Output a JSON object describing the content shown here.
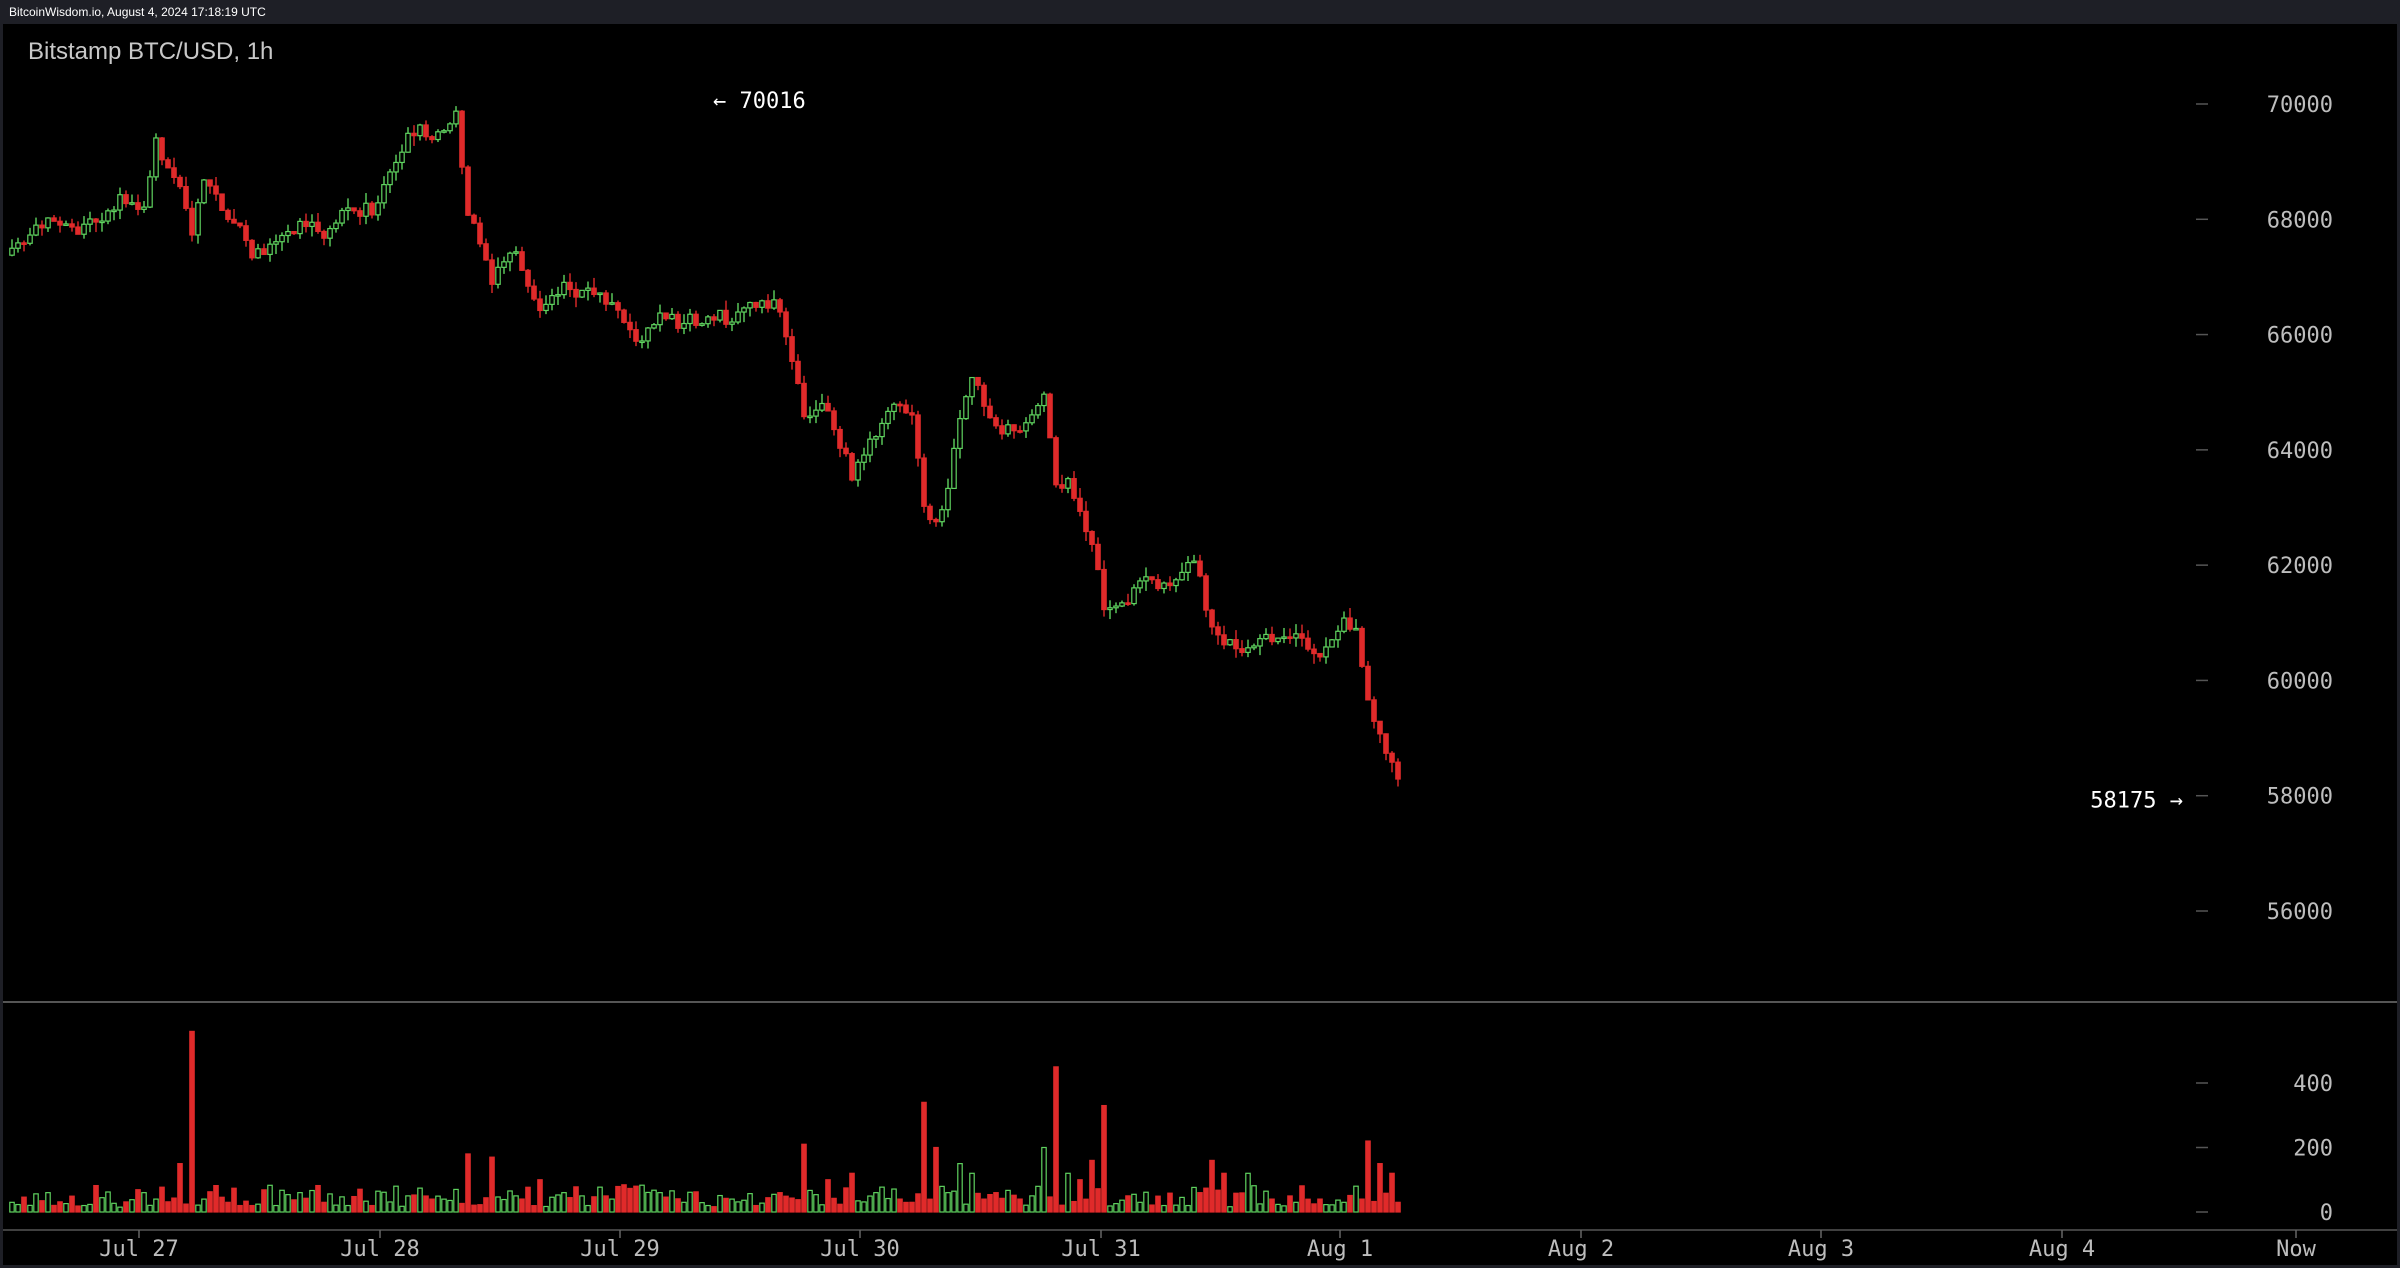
{
  "topbar": {
    "caption": "BitcoinWisdom.io, August 4, 2024 17:18:19 UTC"
  },
  "colors": {
    "up": "#5fd35f",
    "down": "#e02a2a",
    "background": "#000000",
    "axis_text": "#bdbdbd"
  },
  "chart_data": {
    "type": "candlestick",
    "title": "Bitstamp BTC/USD, 1h",
    "price_axis": {
      "ticks": [
        "56000",
        "58000",
        "60000",
        "62000",
        "64000",
        "66000",
        "68000",
        "70000"
      ],
      "range": [
        54500,
        71000
      ]
    },
    "volume_axis": {
      "ticks": [
        "0",
        "200",
        "400"
      ],
      "range": [
        0,
        600
      ]
    },
    "x_ticks": [
      "Jul 27",
      "Jul 28",
      "Jul 29",
      "Jul 30",
      "Jul 31",
      "Aug 1",
      "Aug 2",
      "Aug 3",
      "Aug 4",
      "Now"
    ],
    "annotations": {
      "high": "← 70016",
      "low": "58175 →"
    },
    "anchors": [
      [
        0,
        67500,
        30
      ],
      [
        6,
        67950,
        60
      ],
      [
        12,
        67800,
        20
      ],
      [
        18,
        68300,
        15
      ],
      [
        22,
        68250,
        60
      ],
      [
        24,
        69300,
        40
      ],
      [
        28,
        68500,
        150
      ],
      [
        30,
        67800,
        560
      ],
      [
        32,
        68800,
        40
      ],
      [
        36,
        68000,
        30
      ],
      [
        38,
        67900,
        20
      ],
      [
        40,
        67400,
        20
      ],
      [
        44,
        67500,
        20
      ],
      [
        48,
        68000,
        60
      ],
      [
        52,
        67800,
        30
      ],
      [
        56,
        68100,
        20
      ],
      [
        60,
        68200,
        20
      ],
      [
        64,
        68900,
        80
      ],
      [
        66,
        69600,
        50
      ],
      [
        70,
        69500,
        40
      ],
      [
        74,
        69800,
        70
      ],
      [
        76,
        68200,
        180
      ],
      [
        80,
        67000,
        170
      ],
      [
        84,
        67400,
        50
      ],
      [
        88,
        66500,
        100
      ],
      [
        92,
        66800,
        60
      ],
      [
        96,
        66700,
        20
      ],
      [
        100,
        66500,
        40
      ],
      [
        104,
        65900,
        80
      ],
      [
        108,
        66300,
        60
      ],
      [
        112,
        66200,
        30
      ],
      [
        116,
        66300,
        20
      ],
      [
        120,
        66300,
        40
      ],
      [
        124,
        66500,
        20
      ],
      [
        128,
        66500,
        60
      ],
      [
        132,
        64700,
        210
      ],
      [
        136,
        64700,
        100
      ],
      [
        140,
        63600,
        120
      ],
      [
        144,
        64300,
        60
      ],
      [
        148,
        64800,
        40
      ],
      [
        150,
        64700,
        30
      ],
      [
        152,
        62900,
        340
      ],
      [
        154,
        62800,
        200
      ],
      [
        156,
        63300,
        60
      ],
      [
        158,
        64600,
        150
      ],
      [
        160,
        65200,
        120
      ],
      [
        162,
        64800,
        40
      ],
      [
        164,
        64400,
        60
      ],
      [
        168,
        64300,
        40
      ],
      [
        170,
        64700,
        50
      ],
      [
        172,
        64900,
        200
      ],
      [
        174,
        63300,
        450
      ],
      [
        176,
        63400,
        120
      ],
      [
        178,
        63000,
        100
      ],
      [
        180,
        62400,
        160
      ],
      [
        182,
        61200,
        330
      ],
      [
        186,
        61400,
        50
      ],
      [
        188,
        61800,
        30
      ],
      [
        192,
        61700,
        20
      ],
      [
        196,
        62000,
        20
      ],
      [
        198,
        61900,
        60
      ],
      [
        200,
        60800,
        160
      ],
      [
        202,
        60600,
        120
      ],
      [
        206,
        60600,
        120
      ],
      [
        210,
        60800,
        40
      ],
      [
        214,
        60800,
        30
      ],
      [
        218,
        60500,
        40
      ],
      [
        222,
        61000,
        30
      ],
      [
        224,
        60800,
        80
      ],
      [
        226,
        59600,
        220
      ],
      [
        228,
        59000,
        150
      ],
      [
        230,
        58600,
        120
      ],
      [
        231,
        58300,
        30
      ]
    ]
  }
}
